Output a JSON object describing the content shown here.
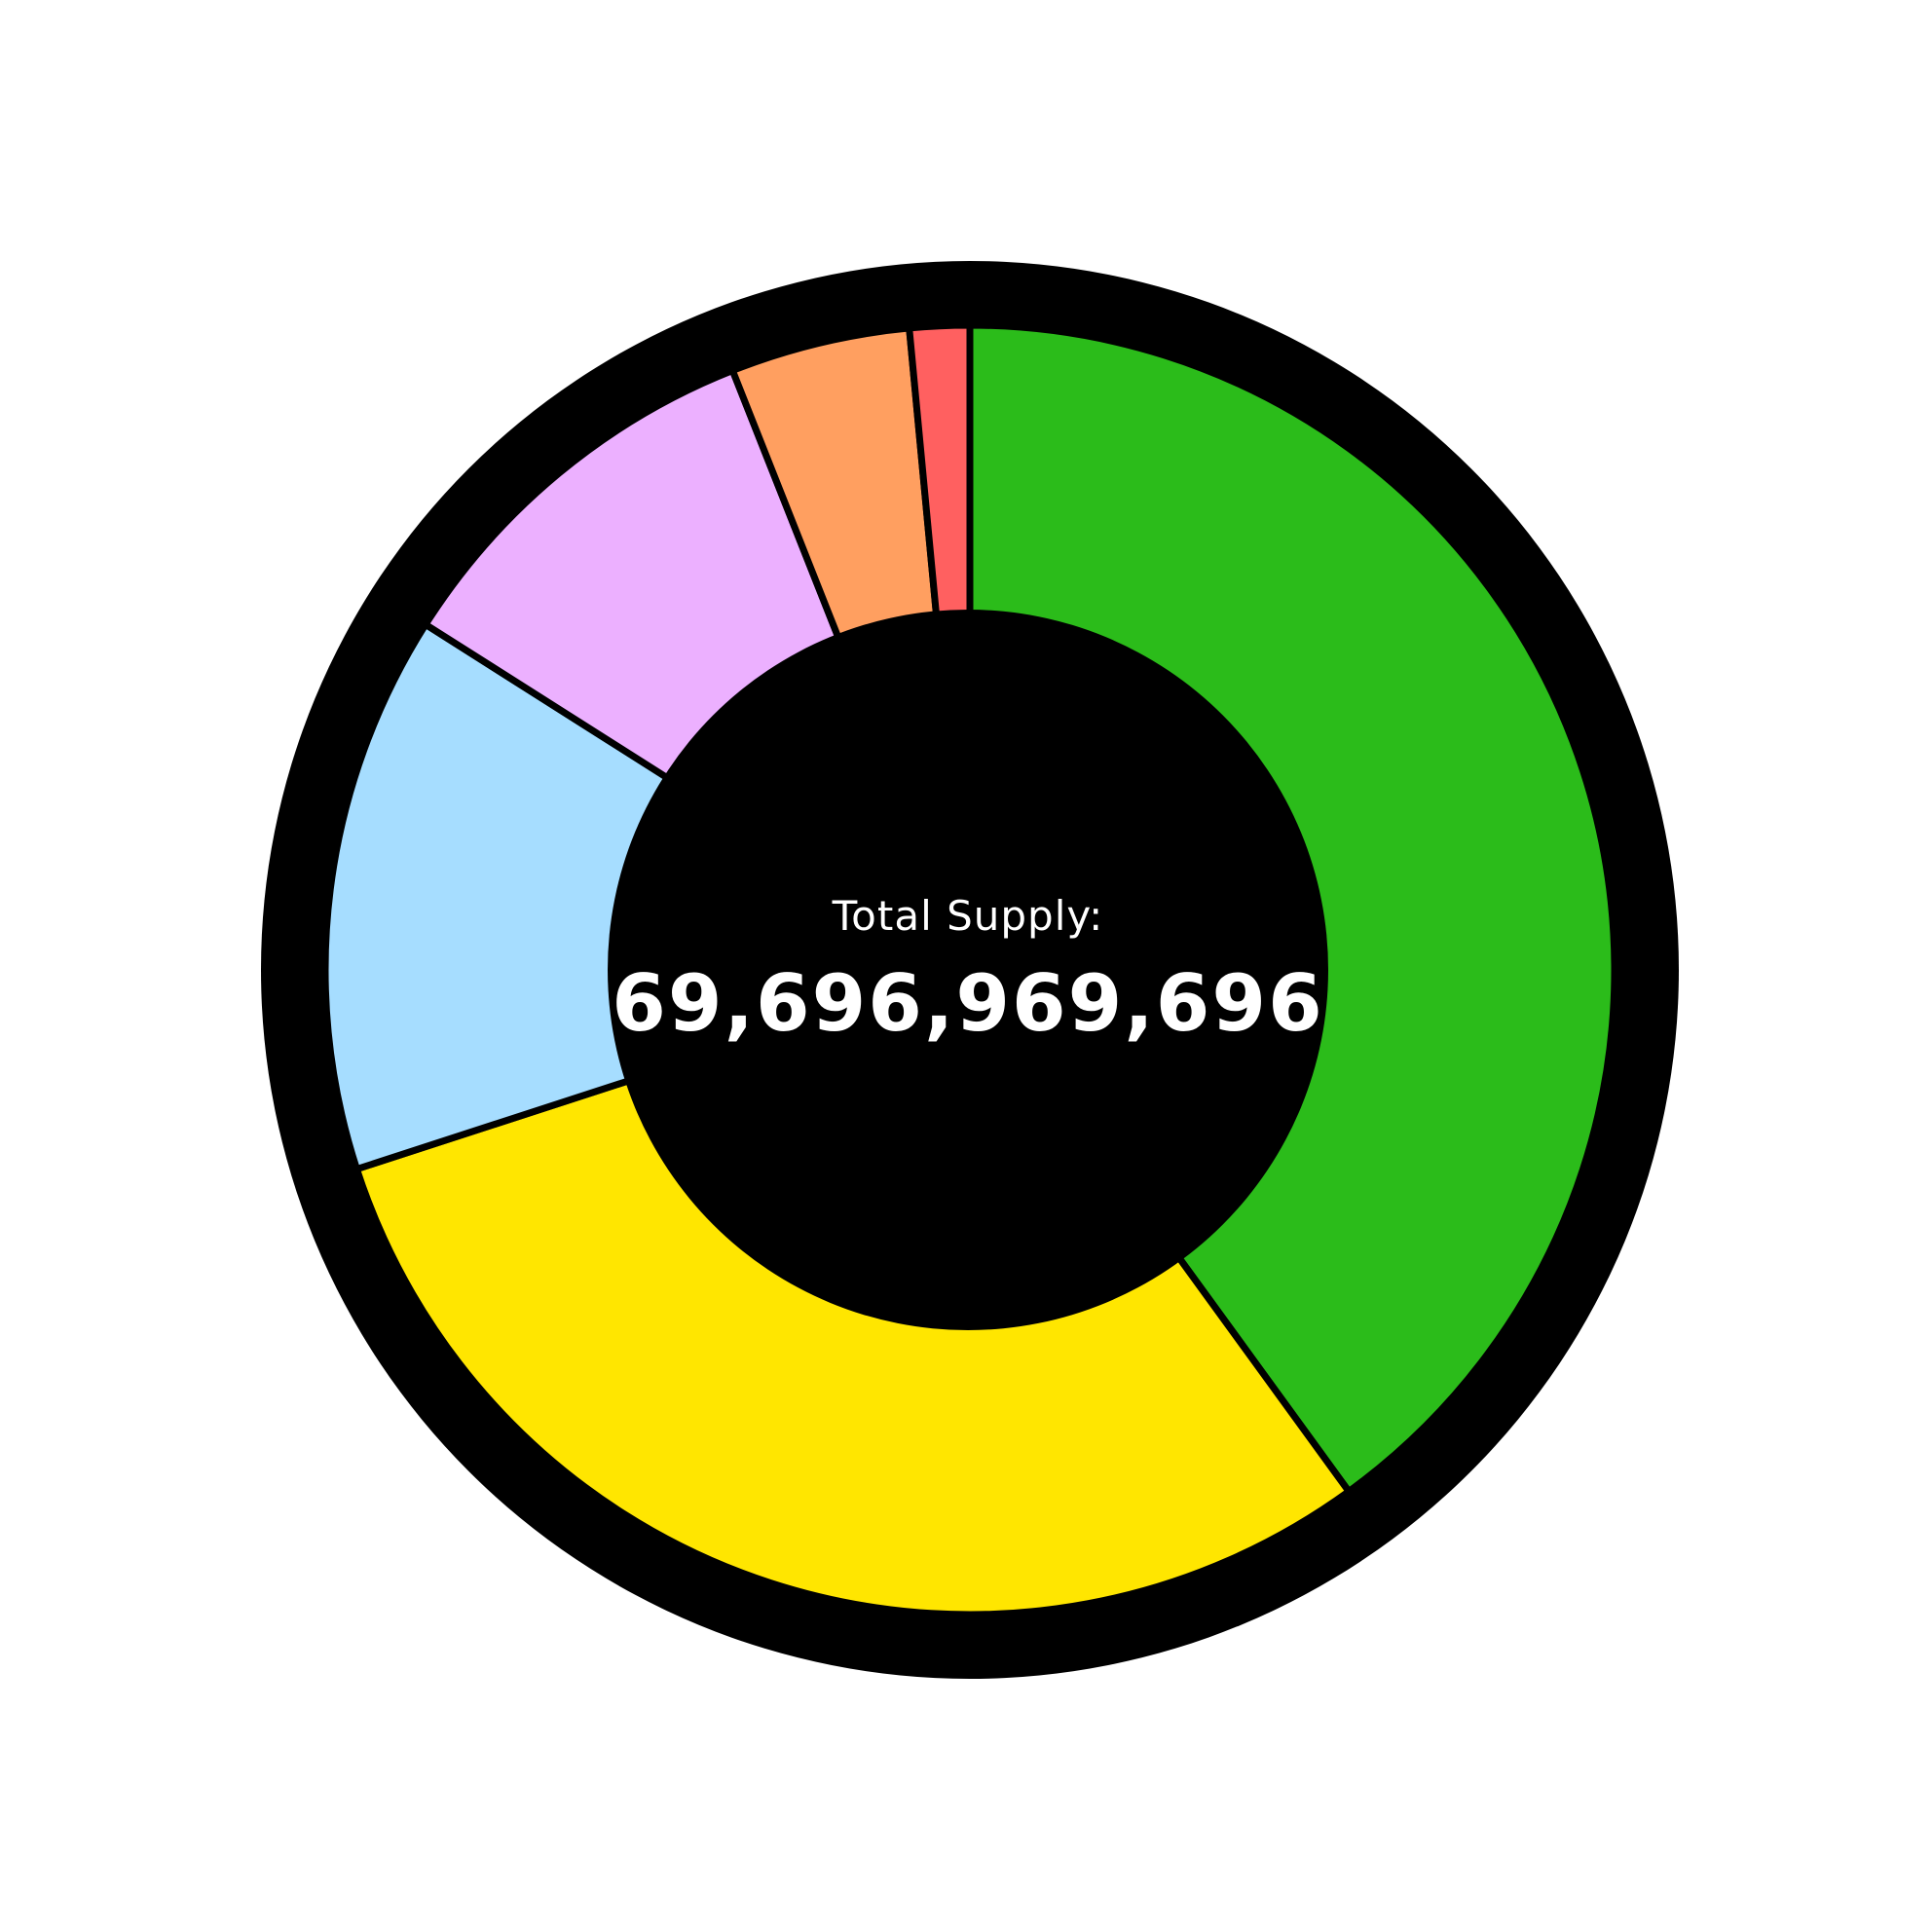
{
  "chart_data": {
    "type": "pie",
    "variant": "donut",
    "title": "",
    "center_label": {
      "caption": "Total Supply:",
      "value": "69,696,969,696"
    },
    "slices": [
      {
        "value": 40.0,
        "color": "#2bbc1a"
      },
      {
        "value": 30.0,
        "color": "#ffe600"
      },
      {
        "value": 14.0,
        "color": "#a6ddff"
      },
      {
        "value": 10.0,
        "color": "#ecb0ff"
      },
      {
        "value": 4.5,
        "color": "#ff9f60"
      },
      {
        "value": 1.5,
        "color": "#ff6060"
      }
    ],
    "start": "top",
    "direction": "clockwise",
    "ring_color": "#000000",
    "hole_color": "#000000",
    "separator_color": "#000000",
    "legend": "none"
  }
}
